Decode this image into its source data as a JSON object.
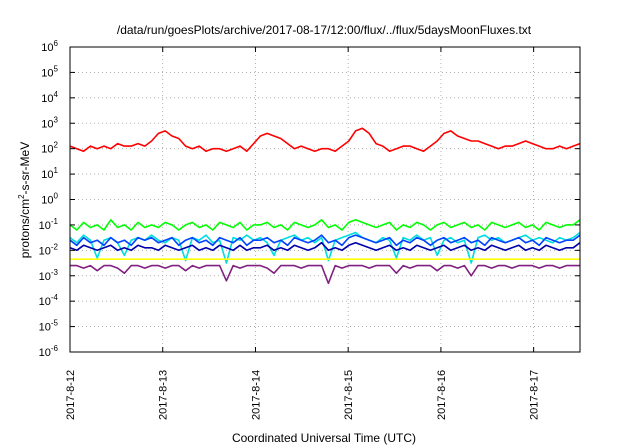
{
  "chart_data": {
    "type": "line",
    "title": "/data/run/goesPlots/archive/2017-08-17/12:00/flux/../flux/5daysMoonFluxes.txt",
    "xlabel": "Coordinated Universal Time (UTC)",
    "ylabel": "protons/cm²-s-sr-MeV",
    "ylabel_parts": [
      "protons/cm",
      "2",
      "-s-sr-MeV"
    ],
    "x_ticks": [
      "2017-8-12",
      "2017-8-13",
      "2017-8-14",
      "2017-8-15",
      "2017-8-16",
      "2017-8-17"
    ],
    "x_range": [
      "2017-08-12T00:00",
      "2017-08-17T12:00"
    ],
    "y_scale": "log",
    "y_range_exponent": [
      -6,
      6
    ],
    "y_ticks": [
      {
        "base": "10",
        "exp": "-6"
      },
      {
        "base": "10",
        "exp": "-5"
      },
      {
        "base": "10",
        "exp": "-4"
      },
      {
        "base": "10",
        "exp": "-3"
      },
      {
        "base": "10",
        "exp": "-2"
      },
      {
        "base": "10",
        "exp": "-1"
      },
      {
        "base": "10",
        "exp": "0"
      },
      {
        "base": "10",
        "exp": "1"
      },
      {
        "base": "10",
        "exp": "2"
      },
      {
        "base": "10",
        "exp": "3"
      },
      {
        "base": "10",
        "exp": "4"
      },
      {
        "base": "10",
        "exp": "5"
      },
      {
        "base": "10",
        "exp": "6"
      }
    ],
    "grid": true,
    "series": [
      {
        "color": "#ff0000",
        "log10": [
          2.1,
          2.0,
          1.9,
          2.1,
          2.0,
          2.1,
          2.0,
          2.2,
          2.1,
          2.1,
          2.2,
          2.1,
          2.3,
          2.6,
          2.7,
          2.5,
          2.4,
          2.1,
          2.0,
          2.1,
          1.9,
          2.0,
          2.0,
          1.9,
          2.0,
          2.1,
          1.9,
          2.2,
          2.5,
          2.6,
          2.5,
          2.4,
          2.2,
          2.0,
          2.1,
          2.0,
          1.9,
          2.0,
          2.0,
          1.9,
          2.1,
          2.3,
          2.7,
          2.8,
          2.6,
          2.2,
          2.1,
          1.9,
          2.0,
          2.1,
          2.1,
          2.0,
          1.9,
          2.1,
          2.3,
          2.6,
          2.7,
          2.5,
          2.4,
          2.3,
          2.3,
          2.2,
          2.1,
          2.0,
          2.1,
          2.1,
          2.2,
          2.3,
          2.2,
          2.1,
          2.0,
          2.0,
          2.1,
          2.0,
          2.1,
          2.2
        ]
      },
      {
        "color": "#00ff00",
        "log10": [
          -1.0,
          -1.2,
          -0.9,
          -1.1,
          -1.0,
          -1.2,
          -0.8,
          -1.1,
          -1.0,
          -1.2,
          -0.9,
          -1.1,
          -1.0,
          -1.1,
          -0.9,
          -1.0,
          -1.2,
          -1.0,
          -0.9,
          -1.1,
          -1.0,
          -1.2,
          -0.9,
          -1.0,
          -1.1,
          -0.9,
          -1.2,
          -1.0,
          -1.0,
          -0.9,
          -1.1,
          -1.0,
          -1.2,
          -0.9,
          -1.0,
          -1.1,
          -1.0,
          -0.8,
          -1.1,
          -1.0,
          -1.2,
          -0.9,
          -0.8,
          -0.9,
          -1.0,
          -1.1,
          -1.0,
          -0.9,
          -1.2,
          -1.0,
          -1.1,
          -0.9,
          -1.0,
          -1.2,
          -1.0,
          -0.9,
          -1.1,
          -1.0,
          -0.9,
          -1.1,
          -1.0,
          -1.2,
          -0.9,
          -1.0,
          -1.1,
          -1.0,
          -0.9,
          -1.1,
          -1.0,
          -1.2,
          -0.9,
          -1.0,
          -1.1,
          -1.0,
          -1.0,
          -0.8
        ]
      },
      {
        "color": "#00dddd",
        "log10": [
          -1.5,
          -1.7,
          -1.4,
          -1.6,
          -2.3,
          -1.6,
          -1.5,
          -1.7,
          -2.2,
          -1.6,
          -1.5,
          -1.6,
          -1.4,
          -1.6,
          -1.7,
          -1.5,
          -1.6,
          -2.4,
          -1.5,
          -1.6,
          -1.4,
          -1.7,
          -1.6,
          -2.5,
          -1.5,
          -1.6,
          -1.4,
          -1.6,
          -1.5,
          -1.7,
          -2.2,
          -1.6,
          -1.5,
          -1.4,
          -1.6,
          -1.5,
          -1.7,
          -1.5,
          -2.4,
          -1.6,
          -1.5,
          -1.4,
          -1.3,
          -1.5,
          -1.6,
          -1.7,
          -1.5,
          -1.6,
          -2.3,
          -1.5,
          -1.6,
          -1.4,
          -1.6,
          -1.5,
          -2.2,
          -1.6,
          -1.5,
          -1.7,
          -1.6,
          -2.5,
          -1.5,
          -1.4,
          -1.6,
          -1.5,
          -1.7,
          -1.6,
          -1.5,
          -1.4,
          -1.6,
          -1.5,
          -1.6,
          -1.7,
          -1.5,
          -1.6,
          -1.5,
          -1.3
        ]
      },
      {
        "color": "#0044ff",
        "log10": [
          -1.6,
          -1.8,
          -1.5,
          -1.7,
          -1.6,
          -1.8,
          -1.5,
          -1.7,
          -1.6,
          -1.8,
          -1.5,
          -1.6,
          -1.5,
          -1.7,
          -1.6,
          -1.5,
          -1.8,
          -1.6,
          -1.5,
          -1.7,
          -1.6,
          -1.8,
          -1.5,
          -1.6,
          -1.7,
          -1.5,
          -1.8,
          -1.6,
          -1.6,
          -1.5,
          -1.7,
          -1.6,
          -1.8,
          -1.5,
          -1.6,
          -1.7,
          -1.6,
          -1.4,
          -1.7,
          -1.6,
          -1.8,
          -1.5,
          -1.4,
          -1.5,
          -1.6,
          -1.7,
          -1.6,
          -1.5,
          -1.8,
          -1.6,
          -1.7,
          -1.5,
          -1.6,
          -1.8,
          -1.6,
          -1.5,
          -1.7,
          -1.6,
          -1.5,
          -1.7,
          -1.6,
          -1.8,
          -1.5,
          -1.6,
          -1.7,
          -1.6,
          -1.5,
          -1.7,
          -1.6,
          -1.8,
          -1.5,
          -1.6,
          -1.7,
          -1.6,
          -1.6,
          -1.4
        ]
      },
      {
        "color": "#0000aa",
        "log10": [
          -1.9,
          -2.0,
          -1.8,
          -1.9,
          -2.0,
          -1.9,
          -1.8,
          -2.0,
          -1.9,
          -2.0,
          -1.8,
          -1.9,
          -1.9,
          -2.0,
          -1.8,
          -1.9,
          -2.0,
          -1.9,
          -1.8,
          -2.0,
          -1.9,
          -2.0,
          -1.8,
          -1.9,
          -2.0,
          -1.8,
          -2.0,
          -1.9,
          -1.9,
          -1.8,
          -2.0,
          -1.9,
          -2.0,
          -1.8,
          -1.9,
          -2.0,
          -1.9,
          -1.7,
          -2.0,
          -1.9,
          -2.0,
          -1.8,
          -1.7,
          -1.8,
          -1.9,
          -2.0,
          -1.9,
          -1.8,
          -2.0,
          -1.9,
          -2.0,
          -1.8,
          -1.9,
          -2.0,
          -1.9,
          -1.8,
          -2.0,
          -1.9,
          -1.8,
          -2.0,
          -1.9,
          -2.0,
          -1.8,
          -1.9,
          -2.0,
          -1.9,
          -1.8,
          -2.0,
          -1.9,
          -2.0,
          -1.8,
          -1.9,
          -2.0,
          -1.9,
          -1.9,
          -1.7
        ]
      },
      {
        "color": "#ffff00",
        "log10": [
          -2.35,
          -2.35,
          -2.35,
          -2.35,
          -2.35,
          -2.35,
          -2.35,
          -2.35,
          -2.35,
          -2.35,
          -2.35,
          -2.35,
          -2.35,
          -2.35,
          -2.35,
          -2.35,
          -2.35,
          -2.35,
          -2.35,
          -2.35,
          -2.35,
          -2.35,
          -2.35,
          -2.35,
          -2.35,
          -2.35,
          -2.35,
          -2.35,
          -2.35,
          -2.35,
          -2.35,
          -2.35,
          -2.35,
          -2.35,
          -2.35,
          -2.35,
          -2.35,
          -2.35,
          -2.35,
          -2.35,
          -2.35,
          -2.35,
          -2.35,
          -2.35,
          -2.35,
          -2.35,
          -2.35,
          -2.35,
          -2.35,
          -2.35,
          -2.35,
          -2.35,
          -2.35,
          -2.35,
          -2.35,
          -2.35,
          -2.35,
          -2.35,
          -2.35,
          -2.35,
          -2.35,
          -2.35,
          -2.35,
          -2.35,
          -2.35,
          -2.35,
          -2.35,
          -2.35,
          -2.35,
          -2.35,
          -2.35,
          -2.35,
          -2.35,
          -2.35,
          -2.35,
          -2.35
        ]
      },
      {
        "color": "#802080",
        "log10": [
          -2.6,
          -2.6,
          -2.7,
          -2.6,
          -2.8,
          -2.6,
          -2.6,
          -2.7,
          -2.9,
          -2.6,
          -2.6,
          -2.7,
          -2.6,
          -2.6,
          -2.7,
          -2.6,
          -2.6,
          -2.8,
          -2.6,
          -2.7,
          -2.6,
          -2.6,
          -2.6,
          -3.2,
          -2.6,
          -2.7,
          -2.6,
          -2.6,
          -2.6,
          -2.7,
          -2.9,
          -2.6,
          -2.6,
          -2.6,
          -2.7,
          -2.6,
          -2.6,
          -2.6,
          -3.3,
          -2.6,
          -2.7,
          -2.6,
          -2.6,
          -2.6,
          -2.7,
          -2.6,
          -2.6,
          -2.6,
          -2.9,
          -2.6,
          -2.7,
          -2.6,
          -2.6,
          -2.6,
          -2.8,
          -2.6,
          -2.6,
          -2.7,
          -2.6,
          -3.0,
          -2.6,
          -2.6,
          -2.7,
          -2.6,
          -2.6,
          -2.7,
          -2.6,
          -2.6,
          -2.6,
          -2.7,
          -2.6,
          -2.6,
          -2.7,
          -2.6,
          -2.6,
          -2.6
        ]
      }
    ]
  }
}
